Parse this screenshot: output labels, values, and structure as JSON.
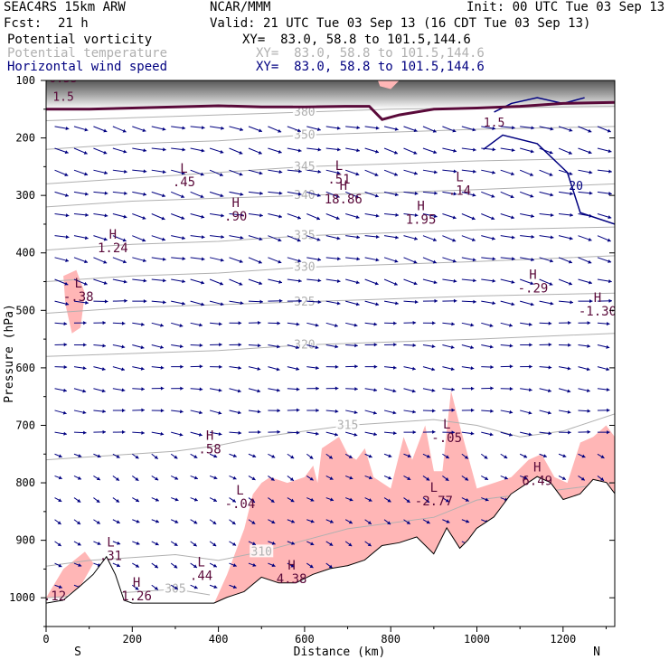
{
  "header": {
    "model": "SEAC4RS 15km ARW",
    "org": "NCAR/MMM",
    "init": "Init: 00 UTC Tue 03 Sep 13",
    "fcst_label": "Fcst:",
    "fcst_value": "21 h",
    "valid": "Valid: 21 UTC Tue 03 Sep 13 (16 CDT Tue 03 Sep 13)",
    "fields": [
      {
        "name": "Potential vorticity",
        "xy": "XY=  83.0, 58.8 to 101.5,144.6",
        "color": "#000000"
      },
      {
        "name": "Potential temperature",
        "xy": "XY=  83.0, 58.8 to 101.5,144.6",
        "color": "#b0b0b0"
      },
      {
        "name": "Horizontal wind speed",
        "xy": "XY=  83.0, 58.8 to 101.5,144.6",
        "color": "#000080"
      }
    ]
  },
  "chart_data": {
    "type": "cross-section",
    "xlabel": "Distance (km)",
    "ylabel": "Pressure (hPa)",
    "xlim": [
      0,
      1320
    ],
    "ylim": [
      1050,
      100
    ],
    "xticks": [
      0,
      200,
      400,
      600,
      800,
      1000,
      1200
    ],
    "yticks": [
      100,
      200,
      300,
      400,
      500,
      600,
      700,
      800,
      900,
      1000
    ],
    "endpoint_labels": {
      "left": "S",
      "right": "N"
    },
    "colors": {
      "pv_fill": "#ffb6b6",
      "pv_text": "#5a0a3a",
      "theta": "#b0b0b0",
      "wind": "#000080",
      "terrain": "#000000",
      "tropopause": "#5a0a3a"
    },
    "pv_contour_labels": [
      "0.55",
      "1.5",
      "1.5"
    ],
    "theta_contours": [
      {
        "value": 305,
        "label": "305",
        "levels": [
          [
            0,
            1000
          ],
          [
            200,
            990
          ],
          [
            300,
            985
          ],
          [
            380,
            995
          ]
        ]
      },
      {
        "value": 310,
        "label": "310",
        "levels": [
          [
            0,
            945
          ],
          [
            100,
            935
          ],
          [
            200,
            930
          ],
          [
            300,
            925
          ],
          [
            400,
            935
          ],
          [
            500,
            920
          ],
          [
            700,
            880
          ],
          [
            900,
            860
          ],
          [
            1000,
            830
          ],
          [
            1320,
            800
          ]
        ]
      },
      {
        "value": 315,
        "label": "315",
        "levels": [
          [
            0,
            760
          ],
          [
            100,
            755
          ],
          [
            200,
            750
          ],
          [
            300,
            745
          ],
          [
            400,
            735
          ],
          [
            500,
            720
          ],
          [
            700,
            700
          ],
          [
            900,
            690
          ],
          [
            1000,
            700
          ],
          [
            1100,
            720
          ],
          [
            1200,
            710
          ],
          [
            1320,
            680
          ]
        ]
      },
      {
        "value": 320,
        "label": "320",
        "levels": [
          [
            0,
            580
          ],
          [
            200,
            575
          ],
          [
            400,
            570
          ],
          [
            600,
            560
          ],
          [
            800,
            555
          ],
          [
            1000,
            550
          ],
          [
            1320,
            540
          ]
        ]
      },
      {
        "value": 325,
        "label": "325",
        "levels": [
          [
            0,
            505
          ],
          [
            200,
            495
          ],
          [
            400,
            490
          ],
          [
            600,
            485
          ],
          [
            800,
            480
          ],
          [
            1000,
            475
          ],
          [
            1320,
            470
          ]
        ]
      },
      {
        "value": 330,
        "label": "330",
        "levels": [
          [
            0,
            450
          ],
          [
            200,
            440
          ],
          [
            400,
            435
          ],
          [
            600,
            425
          ],
          [
            800,
            420
          ],
          [
            1000,
            415
          ],
          [
            1320,
            405
          ]
        ]
      },
      {
        "value": 335,
        "label": "335",
        "levels": [
          [
            0,
            395
          ],
          [
            200,
            385
          ],
          [
            400,
            380
          ],
          [
            600,
            370
          ],
          [
            800,
            365
          ],
          [
            1000,
            360
          ],
          [
            1320,
            355
          ]
        ]
      },
      {
        "value": 340,
        "label": "340",
        "levels": [
          [
            0,
            320
          ],
          [
            200,
            310
          ],
          [
            400,
            305
          ],
          [
            600,
            300
          ],
          [
            800,
            295
          ],
          [
            1000,
            290
          ],
          [
            1320,
            280
          ]
        ]
      },
      {
        "value": 345,
        "label": "345",
        "levels": [
          [
            0,
            280
          ],
          [
            200,
            270
          ],
          [
            400,
            260
          ],
          [
            600,
            250
          ],
          [
            800,
            245
          ],
          [
            1000,
            240
          ],
          [
            1320,
            235
          ]
        ]
      },
      {
        "value": 350,
        "label": "350",
        "levels": [
          [
            0,
            220
          ],
          [
            200,
            210
          ],
          [
            400,
            205
          ],
          [
            600,
            195
          ],
          [
            800,
            190
          ],
          [
            1000,
            185
          ],
          [
            1320,
            180
          ]
        ]
      },
      {
        "value": 380,
        "label": "380",
        "levels": [
          [
            0,
            170
          ],
          [
            200,
            165
          ],
          [
            400,
            160
          ],
          [
            600,
            155
          ],
          [
            800,
            150
          ],
          [
            1000,
            148
          ],
          [
            1320,
            145
          ]
        ]
      }
    ],
    "extrema": [
      {
        "kind": "L",
        "value": ".45",
        "x": 320,
        "p": 270
      },
      {
        "kind": "H",
        "value": ".90",
        "x": 440,
        "p": 330
      },
      {
        "kind": "H",
        "value": "1.24",
        "x": 155,
        "p": 385
      },
      {
        "kind": "L",
        "value": "-.38",
        "x": 75,
        "p": 470
      },
      {
        "kind": "L",
        "value": ".51",
        "x": 680,
        "p": 265
      },
      {
        "kind": "H",
        "value": "18.86",
        "x": 690,
        "p": 300
      },
      {
        "kind": "H",
        "value": "1.95",
        "x": 870,
        "p": 335
      },
      {
        "kind": "L",
        "value": ".14",
        "x": 960,
        "p": 285
      },
      {
        "kind": "H",
        "value": "-.29",
        "x": 1130,
        "p": 455
      },
      {
        "kind": "H",
        "value": "-1.30",
        "x": 1280,
        "p": 495
      },
      {
        "kind": "H",
        "value": ".58",
        "x": 380,
        "p": 735
      },
      {
        "kind": "L",
        "value": "-.04",
        "x": 450,
        "p": 830
      },
      {
        "kind": "L",
        "value": "-.05",
        "x": 930,
        "p": 715
      },
      {
        "kind": "L",
        "value": "-2.77",
        "x": 900,
        "p": 825
      },
      {
        "kind": "H",
        "value": "6.49",
        "x": 1140,
        "p": 790
      },
      {
        "kind": "L",
        "value": ".31",
        "x": 150,
        "p": 920
      },
      {
        "kind": "L",
        "value": ".44",
        "x": 360,
        "p": 955
      },
      {
        "kind": "H",
        "value": "1.26",
        "x": 210,
        "p": 990
      },
      {
        "kind": "H",
        "value": "4.38",
        "x": 570,
        "p": 960
      },
      {
        "kind": "",
        "value": ".12",
        "x": 20,
        "p": 990
      }
    ],
    "terrain": [
      [
        0,
        1010
      ],
      [
        40,
        1005
      ],
      [
        80,
        980
      ],
      [
        110,
        960
      ],
      [
        140,
        930
      ],
      [
        160,
        960
      ],
      [
        180,
        1005
      ],
      [
        200,
        1010
      ],
      [
        390,
        1010
      ],
      [
        420,
        1000
      ],
      [
        460,
        990
      ],
      [
        500,
        965
      ],
      [
        540,
        975
      ],
      [
        580,
        975
      ],
      [
        620,
        960
      ],
      [
        660,
        950
      ],
      [
        700,
        945
      ],
      [
        740,
        935
      ],
      [
        780,
        910
      ],
      [
        820,
        905
      ],
      [
        860,
        895
      ],
      [
        900,
        925
      ],
      [
        930,
        880
      ],
      [
        960,
        915
      ],
      [
        980,
        900
      ],
      [
        1000,
        880
      ],
      [
        1040,
        860
      ],
      [
        1080,
        820
      ],
      [
        1120,
        800
      ],
      [
        1140,
        790
      ],
      [
        1170,
        800
      ],
      [
        1200,
        830
      ],
      [
        1240,
        820
      ],
      [
        1270,
        795
      ],
      [
        1300,
        800
      ],
      [
        1320,
        820
      ]
    ],
    "pv_regions": [
      [
        [
          0,
          1000
        ],
        [
          40,
          950
        ],
        [
          90,
          920
        ],
        [
          110,
          940
        ],
        [
          80,
          980
        ],
        [
          40,
          1000
        ]
      ],
      [
        [
          40,
          440
        ],
        [
          70,
          430
        ],
        [
          90,
          470
        ],
        [
          80,
          530
        ],
        [
          60,
          540
        ],
        [
          45,
          490
        ]
      ],
      [
        [
          390,
          1010
        ],
        [
          420,
          960
        ],
        [
          460,
          880
        ],
        [
          480,
          820
        ],
        [
          500,
          800
        ],
        [
          520,
          790
        ],
        [
          560,
          800
        ],
        [
          600,
          790
        ],
        [
          620,
          770
        ],
        [
          630,
          800
        ],
        [
          640,
          740
        ],
        [
          680,
          720
        ],
        [
          700,
          750
        ],
        [
          720,
          760
        ],
        [
          740,
          740
        ],
        [
          760,
          790
        ],
        [
          800,
          810
        ],
        [
          830,
          720
        ],
        [
          850,
          760
        ],
        [
          880,
          700
        ],
        [
          900,
          780
        ],
        [
          920,
          780
        ],
        [
          940,
          640
        ],
        [
          960,
          700
        ],
        [
          1000,
          810
        ],
        [
          1040,
          800
        ],
        [
          1080,
          790
        ],
        [
          1120,
          760
        ],
        [
          1150,
          750
        ],
        [
          1180,
          790
        ],
        [
          1210,
          800
        ],
        [
          1240,
          730
        ],
        [
          1270,
          720
        ],
        [
          1300,
          700
        ],
        [
          1320,
          720
        ],
        [
          1320,
          820
        ],
        [
          1300,
          800
        ],
        [
          1270,
          795
        ],
        [
          1240,
          820
        ],
        [
          1200,
          830
        ],
        [
          1170,
          800
        ],
        [
          1140,
          790
        ],
        [
          1120,
          800
        ],
        [
          1080,
          820
        ],
        [
          1040,
          860
        ],
        [
          1000,
          880
        ],
        [
          980,
          900
        ],
        [
          960,
          915
        ],
        [
          930,
          880
        ],
        [
          900,
          925
        ],
        [
          860,
          895
        ],
        [
          820,
          905
        ],
        [
          780,
          910
        ],
        [
          740,
          935
        ],
        [
          700,
          945
        ],
        [
          660,
          950
        ],
        [
          620,
          960
        ],
        [
          580,
          975
        ],
        [
          540,
          975
        ],
        [
          500,
          965
        ],
        [
          460,
          990
        ],
        [
          420,
          1000
        ]
      ],
      [
        [
          770,
          100
        ],
        [
          820,
          100
        ],
        [
          800,
          115
        ],
        [
          775,
          110
        ]
      ]
    ],
    "tropopause": [
      [
        0,
        150
      ],
      [
        100,
        150
      ],
      [
        200,
        148
      ],
      [
        300,
        146
      ],
      [
        400,
        144
      ],
      [
        500,
        146
      ],
      [
        600,
        146
      ],
      [
        700,
        145
      ],
      [
        750,
        145
      ],
      [
        780,
        168
      ],
      [
        820,
        160
      ],
      [
        900,
        150
      ],
      [
        1000,
        148
      ],
      [
        1100,
        145
      ],
      [
        1200,
        140
      ],
      [
        1320,
        138
      ]
    ],
    "wind_speed_contour_labels": [
      "20"
    ],
    "wind_grid": {
      "x_step_km": 45,
      "p_step_hPa": 38
    }
  }
}
